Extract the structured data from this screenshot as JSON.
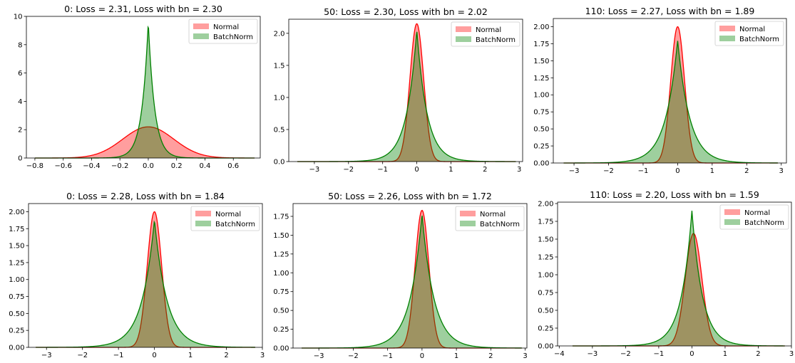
{
  "colors": {
    "normal": "#ff0000",
    "batchnorm": "#008000",
    "normal_fill": "rgba(255,0,0,0.38)",
    "batchnorm_fill": "rgba(0,128,0,0.38)"
  },
  "chart_data": [
    {
      "type": "area",
      "title": "0: Loss = 2.31, Loss with bn = 2.30",
      "legend_position": "top-right",
      "grid": false,
      "xlim": [
        -0.86,
        0.79
      ],
      "ylim": [
        0,
        10
      ],
      "xticks": [
        -0.8,
        -0.6,
        -0.4,
        -0.2,
        0.0,
        0.2,
        0.4,
        0.6
      ],
      "xtick_labels": [
        "−0.8",
        "−0.6",
        "−0.4",
        "−0.2",
        "0.0",
        "0.2",
        "0.4",
        "0.6"
      ],
      "yticks": [
        0,
        2,
        4,
        6,
        8,
        10
      ],
      "ytick_labels": [
        "0",
        "2",
        "4",
        "6",
        "8",
        "10"
      ],
      "data_range": [
        -0.8,
        0.75
      ],
      "series": [
        {
          "name": "Normal",
          "shape": "gauss",
          "center": 0.0,
          "peak": 2.2,
          "width": 0.18
        },
        {
          "name": "BatchNorm",
          "shape": "laplace",
          "center": 0.0,
          "peak": 9.6,
          "width": 0.045
        }
      ]
    },
    {
      "type": "area",
      "title": "50: Loss = 2.30, Loss with bn = 2.02",
      "legend_position": "top-right",
      "grid": false,
      "xlim": [
        -3.75,
        3.1
      ],
      "ylim": [
        0,
        2.22
      ],
      "xticks": [
        -3,
        -2,
        -1,
        0,
        1,
        2,
        3
      ],
      "xtick_labels": [
        "−3",
        "−2",
        "−1",
        "0",
        "1",
        "2",
        "3"
      ],
      "yticks": [
        0,
        0.5,
        1.0,
        1.5,
        2.0
      ],
      "ytick_labels": [
        "0.0",
        "0.5",
        "1.0",
        "1.5",
        "2.0"
      ],
      "data_range": [
        -3.5,
        2.9
      ],
      "series": [
        {
          "name": "Normal",
          "shape": "gauss",
          "center": 0.0,
          "peak": 2.15,
          "width": 0.2
        },
        {
          "name": "BatchNorm",
          "shape": "laplace",
          "center": 0.0,
          "peak": 2.05,
          "width": 0.3
        }
      ]
    },
    {
      "type": "area",
      "title": "110: Loss = 2.27, Loss with bn = 1.89",
      "legend_position": "top-right",
      "grid": false,
      "xlim": [
        -3.6,
        3.15
      ],
      "ylim": [
        0,
        2.12
      ],
      "xticks": [
        -3,
        -2,
        -1,
        0,
        1,
        2,
        3
      ],
      "xtick_labels": [
        "−3",
        "−2",
        "−1",
        "0",
        "1",
        "2",
        "3"
      ],
      "yticks": [
        0,
        0.25,
        0.5,
        0.75,
        1.0,
        1.25,
        1.5,
        1.75,
        2.0
      ],
      "ytick_labels": [
        "0.00",
        "0.25",
        "0.50",
        "0.75",
        "1.00",
        "1.25",
        "1.50",
        "1.75",
        "2.00"
      ],
      "data_range": [
        -3.3,
        2.9
      ],
      "series": [
        {
          "name": "Normal",
          "shape": "gauss",
          "center": 0.0,
          "peak": 2.0,
          "width": 0.2
        },
        {
          "name": "BatchNorm",
          "shape": "laplace",
          "center": 0.0,
          "peak": 1.8,
          "width": 0.35
        }
      ]
    },
    {
      "type": "area",
      "title": "0: Loss = 2.28, Loss with bn = 1.84",
      "legend_position": "top-right",
      "grid": false,
      "xlim": [
        -3.5,
        3.0
      ],
      "ylim": [
        0,
        2.12
      ],
      "xticks": [
        -3,
        -2,
        -1,
        0,
        1,
        2,
        3
      ],
      "xtick_labels": [
        "−3",
        "−2",
        "−1",
        "0",
        "1",
        "2",
        "3"
      ],
      "yticks": [
        0,
        0.25,
        0.5,
        0.75,
        1.0,
        1.25,
        1.5,
        1.75,
        2.0
      ],
      "ytick_labels": [
        "0.00",
        "0.25",
        "0.50",
        "0.75",
        "1.00",
        "1.25",
        "1.50",
        "1.75",
        "2.00"
      ],
      "data_range": [
        -3.3,
        2.8
      ],
      "series": [
        {
          "name": "Normal",
          "shape": "gauss",
          "center": 0.0,
          "peak": 2.0,
          "width": 0.2
        },
        {
          "name": "BatchNorm",
          "shape": "laplace",
          "center": 0.0,
          "peak": 1.88,
          "width": 0.35
        }
      ]
    },
    {
      "type": "area",
      "title": "50: Loss = 2.26, Loss with bn = 1.72",
      "legend_position": "top-right",
      "grid": false,
      "xlim": [
        -3.75,
        3.05
      ],
      "ylim": [
        0,
        1.92
      ],
      "xticks": [
        -3,
        -2,
        -1,
        0,
        1,
        2,
        3
      ],
      "xtick_labels": [
        "−3",
        "−2",
        "−1",
        "0",
        "1",
        "2",
        "3"
      ],
      "yticks": [
        0,
        0.25,
        0.5,
        0.75,
        1.0,
        1.25,
        1.5,
        1.75
      ],
      "ytick_labels": [
        "0.00",
        "0.25",
        "0.50",
        "0.75",
        "1.00",
        "1.25",
        "1.50",
        "1.75"
      ],
      "data_range": [
        -3.5,
        2.9
      ],
      "series": [
        {
          "name": "Normal",
          "shape": "gauss",
          "center": 0.0,
          "peak": 1.83,
          "width": 0.2
        },
        {
          "name": "BatchNorm",
          "shape": "laplace",
          "center": 0.0,
          "peak": 1.78,
          "width": 0.35
        }
      ]
    },
    {
      "type": "area",
      "title": "110: Loss = 2.20, Loss with bn = 1.59",
      "legend_position": "top-right",
      "grid": false,
      "xlim": [
        -4.05,
        3.0
      ],
      "ylim": [
        0,
        2.02
      ],
      "xticks": [
        -4,
        -3,
        -2,
        -1,
        0,
        1,
        2,
        3
      ],
      "xtick_labels": [
        "−4",
        "−3",
        "−2",
        "−1",
        "0",
        "1",
        "2",
        "3"
      ],
      "yticks": [
        0,
        0.25,
        0.5,
        0.75,
        1.0,
        1.25,
        1.5,
        1.75,
        2.0
      ],
      "ytick_labels": [
        "0.00",
        "0.25",
        "0.50",
        "0.75",
        "1.00",
        "1.25",
        "1.50",
        "1.75",
        "2.00"
      ],
      "data_range": [
        -3.6,
        2.8
      ],
      "series": [
        {
          "name": "Normal",
          "shape": "gauss",
          "center": 0.05,
          "peak": 1.58,
          "width": 0.25
        },
        {
          "name": "BatchNorm",
          "shape": "laplace",
          "center": 0.0,
          "peak": 1.9,
          "width": 0.32
        }
      ]
    }
  ]
}
